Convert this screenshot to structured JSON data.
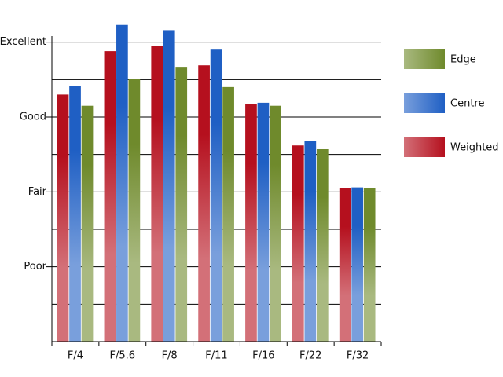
{
  "chart_data": {
    "type": "bar",
    "categories": [
      "F/4",
      "F/5.6",
      "F/8",
      "F/11",
      "F/16",
      "F/22",
      "F/32"
    ],
    "series": [
      {
        "name": "Weighted",
        "color": "#b5101e",
        "values": [
          3.3,
          3.88,
          3.95,
          3.69,
          3.17,
          2.62,
          2.05
        ]
      },
      {
        "name": "Centre",
        "color": "#1f5fc4",
        "values": [
          3.41,
          4.23,
          4.16,
          3.9,
          3.19,
          2.68,
          2.06
        ]
      },
      {
        "name": "Edge",
        "color": "#6f8a2c",
        "values": [
          3.15,
          3.51,
          3.67,
          3.4,
          3.15,
          2.57,
          2.05
        ]
      }
    ],
    "ylim": [
      0,
      4.5
    ],
    "yticks": [
      {
        "value": 1,
        "label": "Poor"
      },
      {
        "value": 2,
        "label": "Fair"
      },
      {
        "value": 3,
        "label": "Good"
      },
      {
        "value": 4,
        "label": "Excellent"
      }
    ],
    "minor_yticks": [
      0.5,
      1.5,
      2.5,
      3.5
    ],
    "grid": true,
    "legend": "right"
  }
}
